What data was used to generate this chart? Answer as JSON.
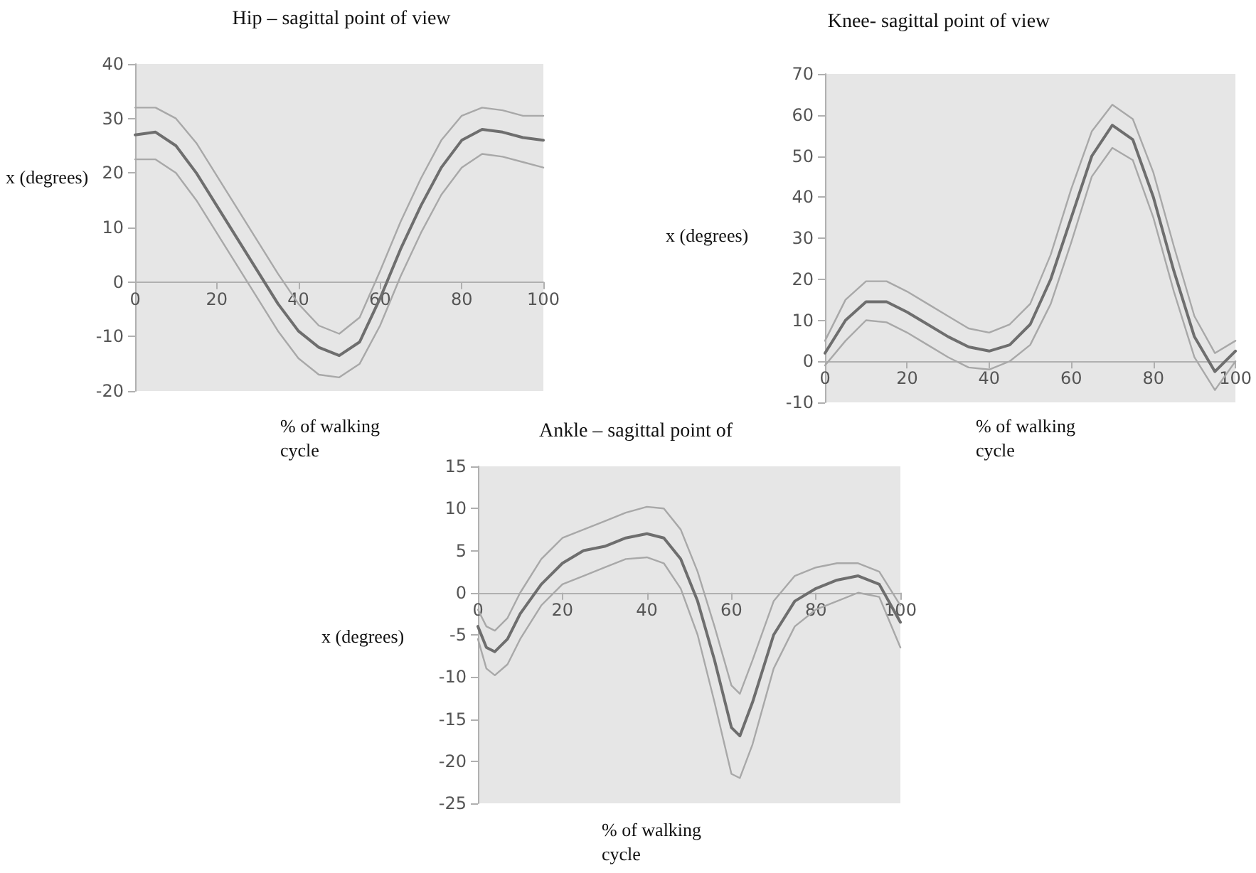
{
  "chart_data": [
    {
      "type": "line",
      "title": "Hip – sagittal point of view",
      "xlabel": "% of walking cycle",
      "ylabel": "x (degrees)",
      "marker": "none",
      "grid": false,
      "x": [
        0,
        5,
        10,
        15,
        20,
        25,
        30,
        35,
        40,
        45,
        50,
        55,
        60,
        65,
        70,
        75,
        80,
        85,
        90,
        95,
        100
      ],
      "xlim": [
        0,
        100
      ],
      "xticks": [
        0,
        20,
        40,
        60,
        80,
        100
      ],
      "ylim": [
        -20,
        40
      ],
      "yticks": [
        -20,
        -10,
        0,
        10,
        20,
        30,
        40
      ],
      "series": [
        {
          "color": "#6e6e6e",
          "values": [
            27,
            27.5,
            25,
            20,
            14,
            8,
            2,
            -4,
            -9,
            -12,
            -13.5,
            -11,
            -3,
            6,
            14,
            21,
            26,
            28,
            27.5,
            26.5,
            26
          ]
        },
        {
          "color": "#a8a8a8",
          "values": [
            32,
            32,
            30,
            25.5,
            19.5,
            13.5,
            7.5,
            1.5,
            -4,
            -8,
            -9.5,
            -6.5,
            2,
            11,
            19,
            26,
            30.5,
            32,
            31.5,
            30.5,
            30.5
          ]
        },
        {
          "color": "#a8a8a8",
          "values": [
            22.5,
            22.5,
            20,
            15,
            9,
            3,
            -3,
            -9,
            -14,
            -17,
            -17.5,
            -15,
            -8,
            1,
            9,
            16,
            21,
            23.5,
            23,
            22,
            21
          ]
        }
      ]
    },
    {
      "type": "line",
      "title": "Knee- sagittal point of view",
      "xlabel": "% of walking cycle",
      "ylabel": "x (degrees)",
      "marker": "none",
      "grid": false,
      "x": [
        0,
        5,
        10,
        15,
        20,
        25,
        30,
        35,
        40,
        45,
        50,
        55,
        60,
        65,
        70,
        75,
        80,
        85,
        90,
        95,
        100
      ],
      "xlim": [
        0,
        100
      ],
      "xticks": [
        0,
        20,
        40,
        60,
        80,
        100
      ],
      "ylim": [
        -10,
        70
      ],
      "yticks": [
        -10,
        0,
        10,
        20,
        30,
        40,
        50,
        60,
        70
      ],
      "series": [
        {
          "color": "#6e6e6e",
          "values": [
            2,
            10,
            14.5,
            14.5,
            12,
            9,
            6,
            3.5,
            2.5,
            4,
            9,
            20,
            35,
            50,
            57.5,
            54,
            40,
            22,
            6,
            -2.5,
            2.5
          ]
        },
        {
          "color": "#a8a8a8",
          "values": [
            5,
            15,
            19.5,
            19.5,
            17,
            14,
            11,
            8,
            7,
            9,
            14,
            26,
            42,
            56,
            62.5,
            59,
            46,
            28,
            11,
            2,
            5
          ]
        },
        {
          "color": "#a8a8a8",
          "values": [
            -1,
            5,
            10,
            9.5,
            7,
            4,
            1,
            -1.5,
            -2,
            0,
            4,
            14,
            29,
            45,
            52,
            49,
            35,
            17,
            1,
            -7,
            0
          ]
        }
      ]
    },
    {
      "type": "line",
      "title": "Ankle – sagittal point of",
      "xlabel": "% of walking cycle",
      "ylabel": "x (degrees)",
      "marker": "none",
      "grid": false,
      "x": [
        0,
        2,
        4,
        7,
        10,
        15,
        20,
        25,
        30,
        35,
        40,
        44,
        48,
        52,
        56,
        60,
        62,
        65,
        70,
        75,
        80,
        85,
        90,
        95,
        100
      ],
      "xlim": [
        0,
        100
      ],
      "xticks": [
        0,
        20,
        40,
        60,
        80,
        100
      ],
      "ylim": [
        -25,
        15
      ],
      "yticks": [
        -25,
        -20,
        -15,
        -10,
        -5,
        0,
        5,
        10,
        15
      ],
      "series": [
        {
          "color": "#6e6e6e",
          "values": [
            -4,
            -6.5,
            -7,
            -5.5,
            -2.5,
            1,
            3.5,
            5,
            5.5,
            6.5,
            7,
            6.5,
            4,
            -1,
            -8,
            -16,
            -17,
            -13,
            -5,
            -1,
            0.5,
            1.5,
            2,
            1,
            -3.5
          ]
        },
        {
          "color": "#a8a8a8",
          "values": [
            -2,
            -4,
            -4.5,
            -3,
            0,
            4,
            6.5,
            7.5,
            8.5,
            9.5,
            10.2,
            10,
            7.5,
            2.5,
            -4,
            -11,
            -12,
            -8,
            -1,
            2,
            3,
            3.5,
            3.5,
            2.5,
            -1.5
          ]
        },
        {
          "color": "#a8a8a8",
          "values": [
            -5.5,
            -9,
            -9.8,
            -8.5,
            -5.5,
            -1.5,
            1,
            2,
            3,
            4,
            4.2,
            3.5,
            0.5,
            -5,
            -13,
            -21.5,
            -22,
            -18,
            -9,
            -4,
            -2,
            -1,
            0,
            -0.5,
            -6.5
          ]
        }
      ]
    }
  ]
}
